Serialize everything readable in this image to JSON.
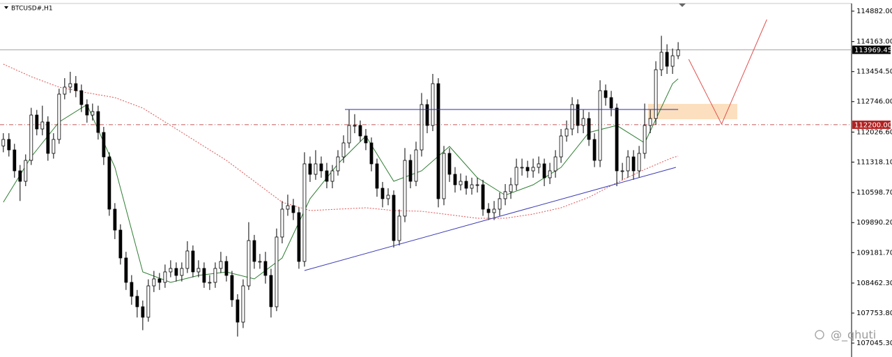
{
  "chart_data": {
    "type": "candlestick",
    "title": "BTCUSD#,H1",
    "open": [
      111700,
      111853,
      111606,
      111112,
      110865,
      111359,
      112429,
      112100,
      112265,
      111524,
      111853,
      112923,
      113088,
      113170,
      113005,
      112676,
      112429,
      112511,
      112018,
      111441,
      110207,
      109713,
      109055,
      108479,
      108150,
      107903,
      107656,
      108396,
      108561,
      108479,
      108726,
      108808,
      108643,
      108808,
      109220,
      108726,
      108808,
      108479,
      108479,
      108808,
      108973,
      108643,
      108067,
      107540,
      108396,
      109466,
      108973,
      108973,
      108643,
      107903,
      109549,
      110207,
      110289,
      110125,
      108973,
      111277,
      111030,
      111277,
      111112,
      110865,
      111112,
      111441,
      111771,
      112183,
      112183,
      111935,
      111771,
      111277,
      110701,
      110454,
      110536,
      109466,
      110043,
      111359,
      110865,
      111606,
      112676,
      112183,
      113170,
      110454,
      111524,
      111030,
      110783,
      110865,
      110701,
      110783,
      110783,
      110207,
      110125,
      110207,
      110454,
      110619,
      110783,
      111195,
      111195,
      111112,
      111195,
      111277,
      110948,
      111112,
      111441,
      111935,
      112100,
      112676,
      112183,
      112347,
      111853,
      111359,
      113005,
      112841,
      112594,
      111112,
      111112,
      111441,
      111112,
      111524,
      112183,
      112347,
      113499,
      113911,
      113581,
      113828
    ],
    "high": [
      112000,
      112000,
      111750,
      111250,
      111500,
      112600,
      112550,
      112650,
      112400,
      112000,
      113050,
      113300,
      113450,
      113350,
      113150,
      112800,
      112700,
      112650,
      112150,
      111550,
      110350,
      109850,
      109200,
      108650,
      108300,
      108050,
      108550,
      108750,
      108700,
      108900,
      109000,
      108950,
      108950,
      109450,
      109350,
      109000,
      108950,
      108650,
      108950,
      109200,
      109100,
      108750,
      108200,
      108550,
      109900,
      109600,
      109150,
      109200,
      108800,
      109750,
      110400,
      110550,
      110450,
      110250,
      111550,
      111450,
      111600,
      111450,
      111300,
      111250,
      111600,
      111950,
      112550,
      112450,
      112300,
      112100,
      111900,
      111400,
      110850,
      110700,
      110650,
      110200,
      111650,
      111500,
      111800,
      112950,
      112800,
      113400,
      113300,
      111700,
      111650,
      111200,
      111050,
      111000,
      110950,
      110950,
      110900,
      110350,
      110400,
      110600,
      110800,
      110950,
      111400,
      111400,
      111350,
      111400,
      111450,
      111400,
      111300,
      111600,
      112100,
      112300,
      112850,
      112800,
      112550,
      112500,
      112000,
      113250,
      113150,
      113000,
      112700,
      111300,
      111600,
      111600,
      111700,
      112700,
      112550,
      113700,
      114300,
      114100,
      114000,
      114150
    ],
    "low": [
      111550,
      111450,
      110950,
      110400,
      110750,
      111250,
      111950,
      111950,
      111350,
      111400,
      111750,
      112800,
      112950,
      112850,
      112500,
      112250,
      112300,
      111850,
      111250,
      110050,
      109500,
      108900,
      108300,
      107950,
      107650,
      107350,
      107550,
      108250,
      108300,
      108350,
      108600,
      108500,
      108500,
      108700,
      108600,
      108600,
      108350,
      108300,
      108350,
      108700,
      108500,
      107900,
      107200,
      107400,
      108300,
      108800,
      108800,
      108450,
      107650,
      107800,
      109400,
      110050,
      109950,
      108800,
      108850,
      110850,
      110900,
      110950,
      110700,
      110700,
      111000,
      111300,
      111650,
      112000,
      111800,
      111600,
      111100,
      110500,
      110250,
      110300,
      109300,
      109350,
      109900,
      110700,
      110750,
      111450,
      112000,
      112050,
      110250,
      110300,
      110850,
      110600,
      110650,
      110550,
      110550,
      110600,
      110050,
      109950,
      109950,
      110050,
      110300,
      110450,
      110650,
      111000,
      110950,
      110950,
      111050,
      110750,
      110800,
      110950,
      111300,
      111800,
      111950,
      112000,
      112000,
      111700,
      111200,
      111200,
      112650,
      112400,
      110750,
      110900,
      110950,
      110900,
      110950,
      111400,
      112000,
      112200,
      113350,
      113400,
      113400,
      113750
    ],
    "close": [
      111853,
      111606,
      111112,
      110865,
      111359,
      112429,
      112100,
      112265,
      111524,
      111853,
      112923,
      113088,
      113170,
      113005,
      112676,
      112429,
      112511,
      112018,
      111441,
      110207,
      109713,
      109055,
      108479,
      108150,
      107903,
      107656,
      108396,
      108561,
      108479,
      108726,
      108808,
      108643,
      108808,
      109220,
      108726,
      108808,
      108479,
      108479,
      108808,
      108973,
      108643,
      108067,
      107540,
      108396,
      109466,
      108973,
      108973,
      108643,
      107903,
      109549,
      110207,
      110289,
      110125,
      108973,
      111277,
      111030,
      111277,
      111112,
      110865,
      111112,
      111441,
      111771,
      112183,
      112183,
      111935,
      111771,
      111277,
      110701,
      110454,
      110536,
      109466,
      110043,
      111359,
      110865,
      111606,
      112676,
      112183,
      113170,
      110454,
      111524,
      111030,
      110783,
      110865,
      110701,
      110783,
      110783,
      110207,
      110125,
      110207,
      110454,
      110619,
      110783,
      111195,
      111195,
      111112,
      111195,
      111277,
      110948,
      111112,
      111441,
      111935,
      112100,
      112676,
      112183,
      112347,
      111853,
      111359,
      113005,
      112841,
      112594,
      111112,
      111112,
      111441,
      111112,
      111524,
      112183,
      112347,
      113499,
      113911,
      113581,
      113828,
      113969.45
    ],
    "colors": {
      "up": "#ffffff",
      "down": "#000000",
      "outline": "#000000"
    },
    "xlim": [
      -0.6,
      152.1
    ],
    "ylim": [
      106717,
      115145
    ],
    "yticks": [
      {
        "value": 114882,
        "label": "114882.00"
      },
      {
        "value": 114163,
        "label": "114163.00"
      },
      {
        "value": 113454.5,
        "label": "113454.50"
      },
      {
        "value": 112746,
        "label": "112746.00"
      },
      {
        "value": 112026.6,
        "label": "112026.60"
      },
      {
        "value": 111318.1,
        "label": "111318.10"
      },
      {
        "value": 110598.7,
        "label": "110598.70"
      },
      {
        "value": 109890.2,
        "label": "109890.20"
      },
      {
        "value": 109181.7,
        "label": "109181.70"
      },
      {
        "value": 108462.3,
        "label": "108462.30"
      },
      {
        "value": 107753.8,
        "label": "107753.80"
      },
      {
        "value": 107045.3,
        "label": "107045.30"
      }
    ],
    "moving_averages": [
      {
        "color": "#2e7d32",
        "style": "solid",
        "x": [
          0,
          5,
          10,
          15,
          20,
          25,
          30,
          35,
          40,
          45,
          50,
          55,
          60,
          65,
          70,
          75,
          80,
          85,
          90,
          95,
          100,
          105,
          110,
          115,
          120,
          121
        ],
        "values": [
          110372,
          111441,
          112265,
          112676,
          111195,
          108726,
          108479,
          108643,
          108726,
          108561,
          109055,
          110454,
          111277,
          111935,
          110865,
          111112,
          111689,
          110948,
          110536,
          110783,
          111195,
          112018,
          112183,
          111771,
          113170,
          113285
        ]
      },
      {
        "color": "#e05050",
        "style": "dotted",
        "x": [
          0,
          5,
          10,
          15,
          20,
          25,
          30,
          35,
          40,
          45,
          50,
          55,
          60,
          65,
          70,
          75,
          80,
          85,
          90,
          95,
          100,
          105,
          110,
          115,
          120,
          121
        ],
        "values": [
          113631,
          113334,
          113088,
          112956,
          112841,
          112594,
          112183,
          111771,
          111359,
          110865,
          110372,
          110174,
          110207,
          110240,
          110174,
          110157,
          110075,
          109993,
          109993,
          110092,
          110240,
          110487,
          110832,
          111145,
          111425,
          111458
        ]
      }
    ],
    "lines": [
      {
        "color": "#2b2bb0",
        "x": [
          61.25,
          121
        ],
        "values": [
          112561,
          112561
        ]
      },
      {
        "color": "#3b3bb5",
        "x": [
          54,
          120.6
        ],
        "values": [
          108758,
          111195
        ]
      },
      {
        "color": "#e05050",
        "x": [
          122.9,
          128.8,
          136.9
        ],
        "values": [
          113746,
          112215,
          114684
        ]
      }
    ],
    "level": {
      "value": 112200,
      "label": "112200.00",
      "color": "#b22222"
    },
    "zone": {
      "x": [
        115.6,
        131.6
      ],
      "values": [
        112330,
        112693
      ],
      "color": "#fbd9b3"
    },
    "last_price_color": "#000000",
    "watermark": "@_qhuti"
  }
}
